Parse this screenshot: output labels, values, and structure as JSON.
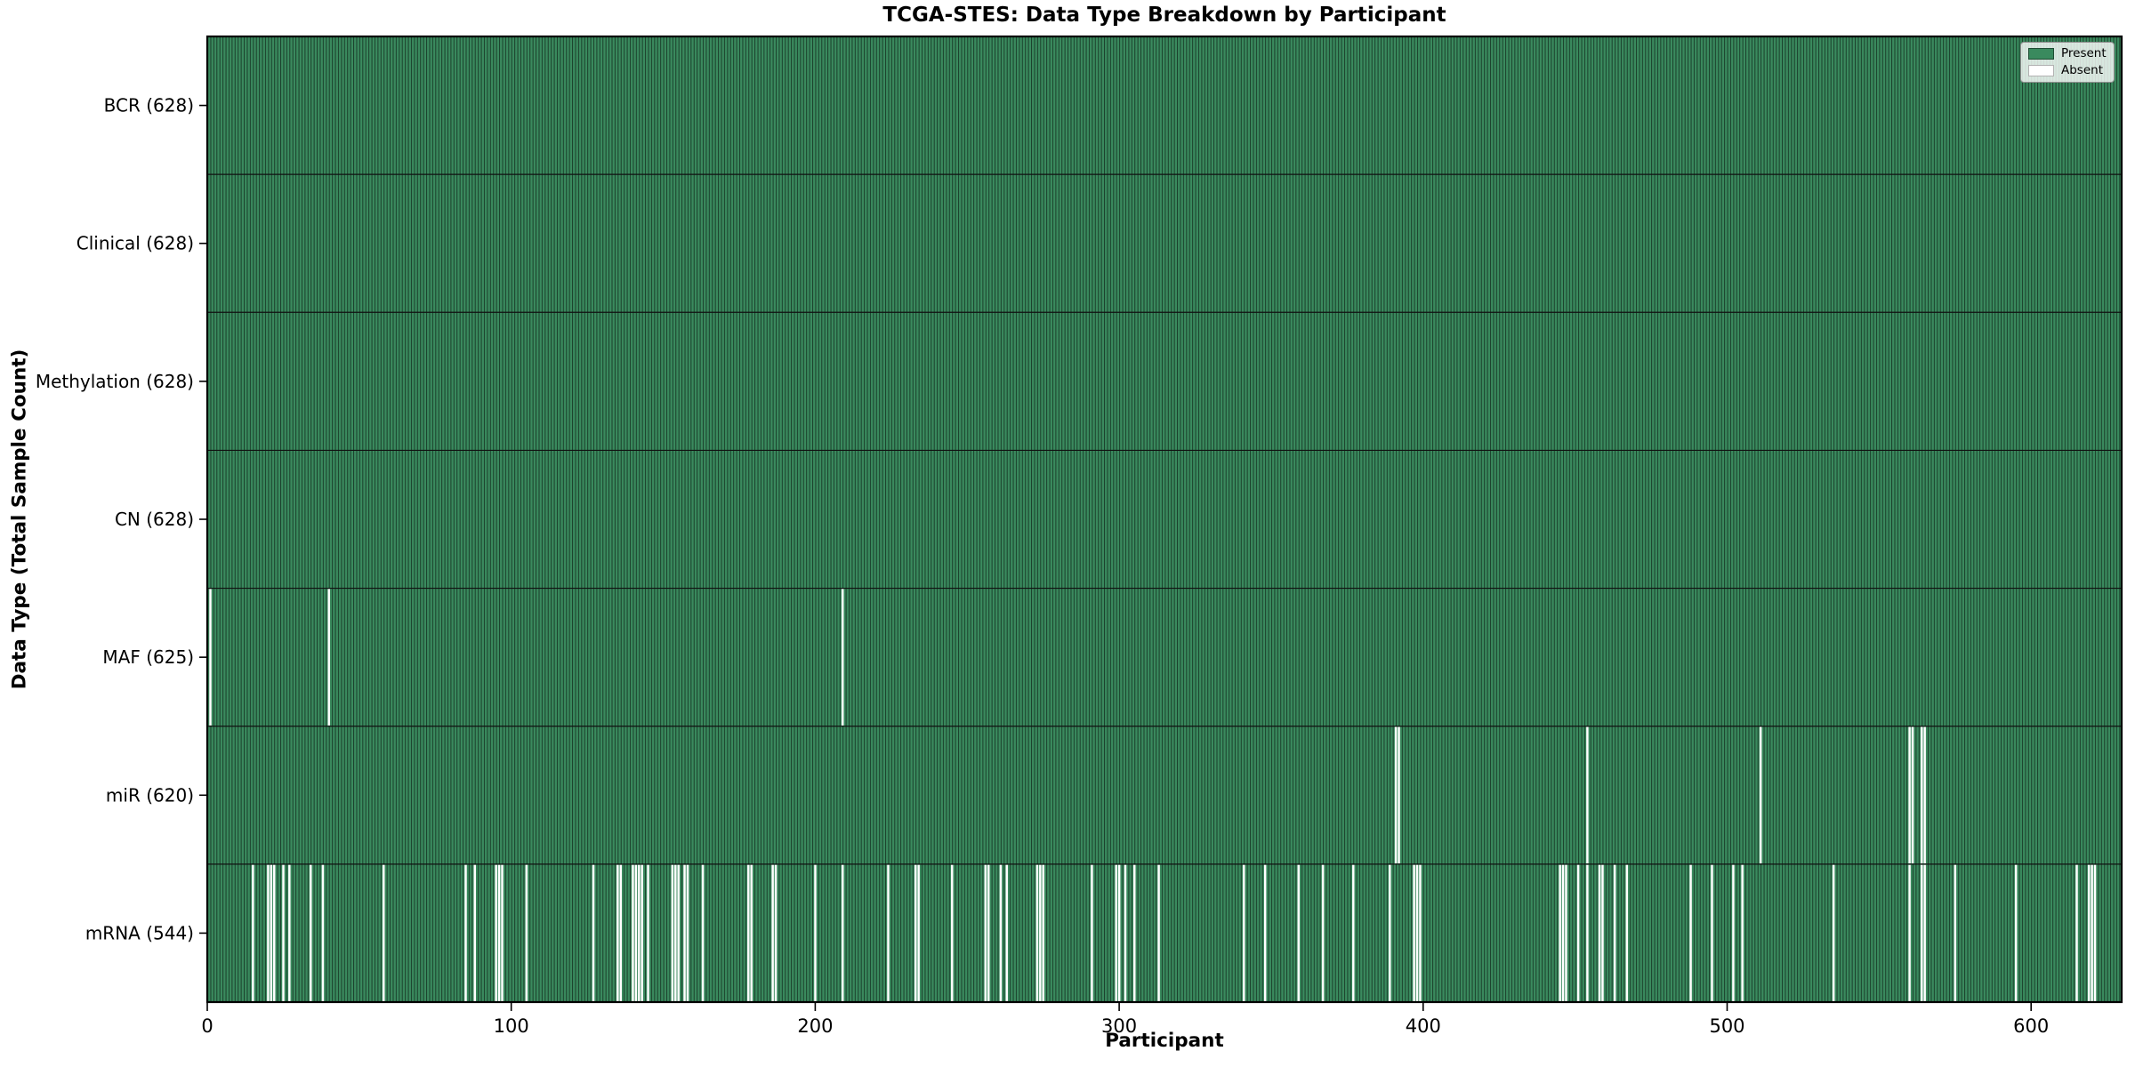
{
  "colors": {
    "present": "#3a8a5e",
    "bar_edge": "rgba(0,0,0,0.55)",
    "absent": "#ffffff",
    "row_divider": "#101010",
    "plot_border": "#000000",
    "tick": "#000000",
    "text": "#000000",
    "legend_border": "#8f8f8f",
    "legend_bg": "rgba(255,255,255,0.8)"
  },
  "chart_data": {
    "type": "heatmap",
    "title": "TCGA-STES: Data Type Breakdown by Participant",
    "xlabel": "Participant",
    "ylabel": "Data Type (Total Sample Count)",
    "legend": [
      "Present",
      "Absent"
    ],
    "legend_position": "upper right",
    "n_participants": 628,
    "x_ticks": [
      0,
      100,
      200,
      300,
      400,
      500,
      600
    ],
    "x_range": [
      0,
      628
    ],
    "grid": false,
    "cell_values": "1 = present (green), 0 = absent (white)",
    "rows": [
      {
        "label": "BCR (628)",
        "data_type": "BCR",
        "present_count": 628,
        "absent_participants": []
      },
      {
        "label": "Clinical (628)",
        "data_type": "Clinical",
        "present_count": 628,
        "absent_participants": []
      },
      {
        "label": "Methylation (628)",
        "data_type": "Methylation",
        "present_count": 628,
        "absent_participants": []
      },
      {
        "label": "CN (628)",
        "data_type": "CN",
        "present_count": 628,
        "absent_participants": []
      },
      {
        "label": "MAF (625)",
        "data_type": "MAF",
        "present_count": 625,
        "absent_participants": [
          1,
          40,
          209
        ]
      },
      {
        "label": "miR (620)",
        "data_type": "miR",
        "present_count": 620,
        "absent_participants": [
          391,
          392,
          454,
          511,
          560,
          561,
          564,
          565
        ]
      },
      {
        "label": "mRNA (544)",
        "data_type": "mRNA",
        "present_count": 544,
        "absent_participants": [
          15,
          20,
          21,
          22,
          25,
          27,
          34,
          38,
          58,
          85,
          88,
          95,
          96,
          97,
          105,
          127,
          135,
          136,
          140,
          141,
          142,
          143,
          145,
          153,
          154,
          155,
          157,
          158,
          163,
          178,
          179,
          186,
          187,
          200,
          209,
          224,
          233,
          234,
          245,
          256,
          257,
          261,
          263,
          273,
          274,
          275,
          291,
          299,
          300,
          302,
          305,
          313,
          341,
          348,
          359,
          367,
          377,
          389,
          397,
          398,
          399,
          445,
          446,
          447,
          451,
          454,
          458,
          459,
          463,
          467,
          488,
          495,
          502,
          505,
          535,
          560,
          564,
          565,
          575,
          595,
          615,
          619,
          620,
          621
        ]
      }
    ]
  }
}
